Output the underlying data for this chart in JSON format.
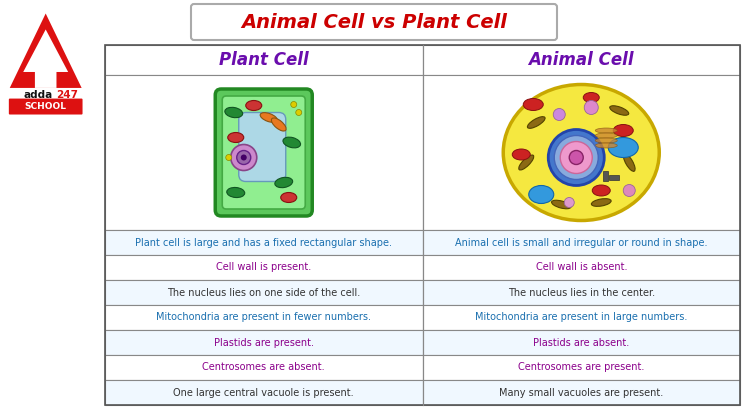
{
  "title": "Animal Cell vs Plant Cell",
  "title_color": "#cc0000",
  "title_fontsize": 14,
  "col1_header": "Plant Cell",
  "col2_header": "Animal Cell",
  "header_color": "#6a0dad",
  "header_fontsize": 12,
  "rows": [
    [
      "Plant cell is large and has a fixed rectangular shape.",
      "Animal cell is small and irregular or round in shape."
    ],
    [
      "Cell wall is present.",
      "Cell wall is absent."
    ],
    [
      "The nucleus lies on one side of the cell.",
      "The nucleus lies in the center."
    ],
    [
      "Mitochondria are present in fewer numbers.",
      "Mitochondria are present in large numbers."
    ],
    [
      "Plastids are present.",
      "Plastids are absent."
    ],
    [
      "Centrosomes are absent.",
      "Centrosomes are present."
    ],
    [
      "One large central vacuole is present.",
      "Many small vacuoles are present."
    ]
  ],
  "blue_rows": [
    0,
    3
  ],
  "blue_text_color": "#1a6faf",
  "purple_rows": [
    1,
    4,
    5
  ],
  "purple_text_color": "#8b008b",
  "dark_rows": [
    2,
    6
  ],
  "dark_text_color": "#333333",
  "row_fontsize": 7,
  "table_border_color": "#888888",
  "fig_bg": "#ffffff",
  "header_bg": "#ffffff"
}
